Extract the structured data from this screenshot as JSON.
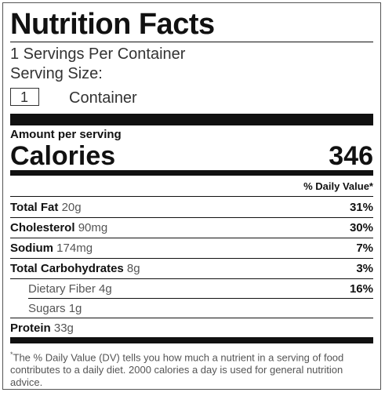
{
  "header": {
    "title": "Nutrition Facts",
    "servings": "1 Servings Per Container",
    "serving_size_label": "Serving Size:",
    "serving_size_value": "1",
    "serving_size_unit": "Container"
  },
  "calories": {
    "label": "Amount per serving",
    "name": "Calories",
    "value": "346"
  },
  "table": {
    "dv_header": "% Daily Value*",
    "rows": [
      [
        "Total Fat",
        "20g",
        "31%"
      ],
      [
        "Cholesterol",
        "90mg",
        "30%"
      ],
      [
        "Sodium",
        "174mg",
        "7%"
      ],
      [
        "Total Carbohydrates",
        "8g",
        "3%"
      ],
      [
        "Dietary Fiber",
        "4g",
        "16%"
      ],
      [
        "Sugars",
        "1g"
      ],
      [
        "Protein",
        "33g"
      ]
    ]
  },
  "footnote": {
    "marker": "*",
    "text": "The % Daily Value (DV) tells you how much a nutrient in a serving of food contributes to a daily diet. 2000 calories a day is used for general nutrition advice."
  }
}
